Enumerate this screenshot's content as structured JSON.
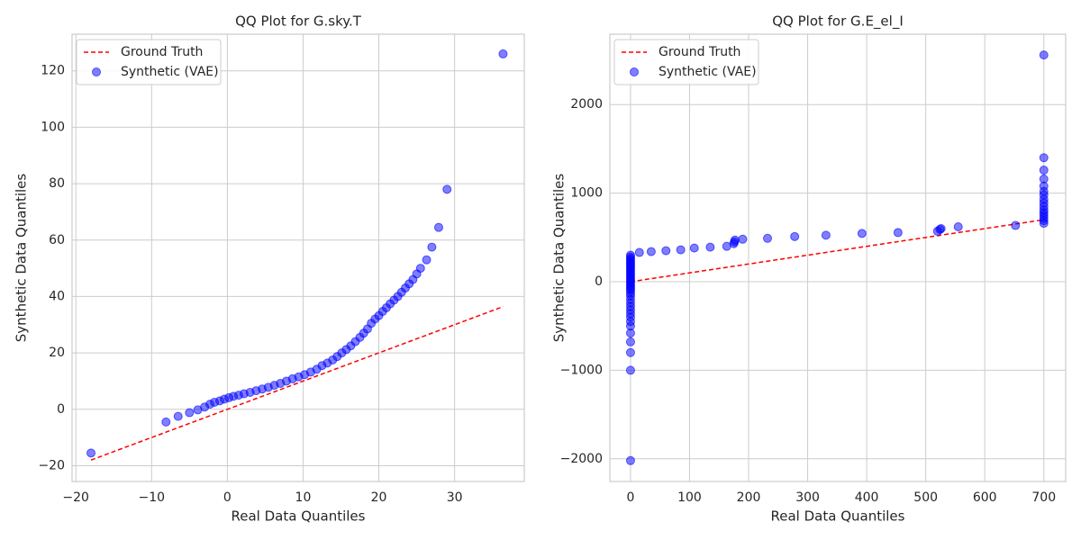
{
  "chart_data": [
    {
      "type": "scatter",
      "title": "QQ Plot for G.sky.T",
      "x_label": "Real Data Quantiles",
      "y_label": "Synthetic Data Quantiles",
      "xlim": [
        -20.5,
        39.2
      ],
      "ylim": [
        -25.6,
        133
      ],
      "xticks": [
        {
          "value": -20,
          "label": "−20"
        },
        {
          "value": -10,
          "label": "−10"
        },
        0,
        10,
        20,
        30
      ],
      "yticks": [
        {
          "value": -20,
          "label": "−20"
        },
        0,
        20,
        40,
        60,
        80,
        100,
        120
      ],
      "grid": true,
      "legend": "upper left",
      "series": [
        {
          "name": "Ground Truth",
          "type": "line",
          "color": "red",
          "x": [
            -18,
            36.4
          ],
          "values": [
            -18,
            36.4
          ]
        },
        {
          "name": "Synthetic (VAE)",
          "type": "scatter",
          "color": "blue",
          "x": [
            -18,
            -8.1,
            -6.5,
            -5,
            -3.9,
            -3,
            -2.3,
            -1.7,
            -1,
            -0.4,
            0.2,
            0.8,
            1.5,
            2.2,
            3,
            3.8,
            4.6,
            5.4,
            6.2,
            7,
            7.8,
            8.6,
            9.4,
            10.2,
            11,
            11.8,
            12.5,
            13.2,
            13.9,
            14.5,
            15.1,
            15.7,
            16.3,
            16.9,
            17.5,
            18,
            18.5,
            19,
            19.5,
            20,
            20.5,
            21,
            21.5,
            22,
            22.5,
            23,
            23.5,
            24,
            24.5,
            25,
            25.5,
            26.3,
            27,
            27.9,
            29,
            36.4
          ],
          "values": [
            -15.5,
            -4.5,
            -2.5,
            -1.2,
            -0.2,
            0.8,
            1.8,
            2.5,
            3,
            3.6,
            4.1,
            4.6,
            5,
            5.5,
            6,
            6.6,
            7.2,
            7.8,
            8.5,
            9.2,
            10,
            10.8,
            11.5,
            12.3,
            13.2,
            14.2,
            15.5,
            16.4,
            17.5,
            18.7,
            20,
            21.2,
            22.5,
            24,
            25.5,
            27,
            28.5,
            30.5,
            32,
            33.2,
            34.7,
            36,
            37.4,
            38.7,
            40,
            41.5,
            43,
            44.5,
            46,
            48,
            50,
            53,
            57.5,
            64.5,
            78,
            126
          ]
        }
      ]
    },
    {
      "type": "scatter",
      "title": "QQ Plot for G.E_el_I",
      "x_label": "Real Data Quantiles",
      "y_label": "Synthetic Data Quantiles",
      "xlim": [
        -35,
        737
      ],
      "ylim": [
        -2256,
        2795
      ],
      "xticks": [
        0,
        100,
        200,
        300,
        400,
        500,
        600,
        700
      ],
      "yticks": [
        {
          "value": -2000,
          "label": "−2000"
        },
        {
          "value": -1000,
          "label": "−1000"
        },
        0,
        1000,
        2000
      ],
      "grid": true,
      "legend": "upper left",
      "series": [
        {
          "name": "Ground Truth",
          "type": "line",
          "color": "red",
          "x": [
            0,
            700
          ],
          "values": [
            0,
            700
          ]
        },
        {
          "name": "Synthetic (VAE)",
          "type": "scatter",
          "color": "blue",
          "x": [
            0,
            0,
            0,
            0,
            0,
            0,
            0,
            0,
            0,
            0,
            0,
            0,
            0,
            0,
            0,
            0,
            0,
            0,
            0,
            0,
            0,
            0,
            0,
            0,
            0,
            0,
            0,
            0,
            0,
            0,
            0,
            0,
            0,
            0,
            0,
            0,
            15,
            35,
            60,
            85,
            108,
            135,
            163,
            175,
            176,
            177,
            190,
            232,
            278,
            331,
            392,
            453,
            520,
            524,
            526,
            555,
            652,
            700,
            700,
            700,
            700,
            700,
            700,
            700,
            700,
            700,
            700,
            700,
            700,
            700,
            700,
            700,
            700
          ],
          "values": [
            300,
            280,
            260,
            240,
            220,
            200,
            180,
            160,
            140,
            120,
            100,
            80,
            60,
            40,
            20,
            0,
            -20,
            -40,
            -60,
            -80,
            -100,
            -130,
            -160,
            -200,
            -240,
            -280,
            -320,
            -360,
            -400,
            -450,
            -500,
            -580,
            -680,
            -800,
            -1000,
            -2020,
            330,
            340,
            350,
            360,
            380,
            390,
            400,
            430,
            450,
            470,
            480,
            490,
            510,
            525,
            545,
            555,
            570,
            590,
            600,
            620,
            635,
            660,
            690,
            720,
            750,
            780,
            810,
            850,
            890,
            930,
            980,
            1020,
            1080,
            1160,
            1260,
            1400,
            2560
          ]
        }
      ]
    }
  ]
}
